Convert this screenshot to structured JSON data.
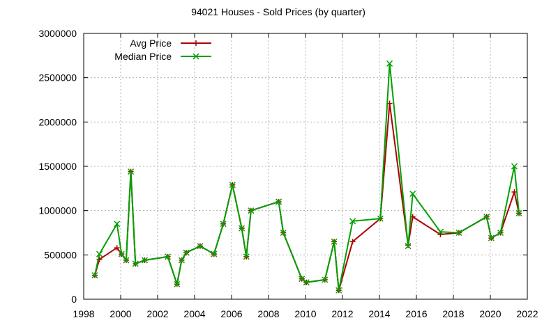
{
  "chart_data": {
    "type": "line",
    "title": "94021 Houses - Sold Prices (by quarter)",
    "xlabel": "",
    "ylabel": "",
    "xlim": [
      1998,
      2022
    ],
    "ylim": [
      0,
      3000000
    ],
    "xticks": [
      1998,
      2000,
      2002,
      2004,
      2006,
      2008,
      2010,
      2012,
      2014,
      2016,
      2018,
      2020,
      2022
    ],
    "yticks": [
      0,
      500000,
      1000000,
      1500000,
      2000000,
      2500000,
      3000000
    ],
    "grid": true,
    "legend_position": "top-left",
    "series": [
      {
        "name": "Avg Price",
        "color": "#b00000",
        "marker": "plus",
        "points": [
          [
            1998.6,
            270000
          ],
          [
            1998.85,
            450000
          ],
          [
            1999.8,
            580000
          ],
          [
            2000.05,
            510000
          ],
          [
            2000.3,
            440000
          ],
          [
            2000.55,
            1440000
          ],
          [
            2000.8,
            400000
          ],
          [
            2001.3,
            440000
          ],
          [
            2002.55,
            480000
          ],
          [
            2003.05,
            170000
          ],
          [
            2003.3,
            440000
          ],
          [
            2003.55,
            525000
          ],
          [
            2004.3,
            600000
          ],
          [
            2005.05,
            510000
          ],
          [
            2005.55,
            850000
          ],
          [
            2006.05,
            1290000
          ],
          [
            2006.55,
            800000
          ],
          [
            2006.8,
            480000
          ],
          [
            2007.05,
            1000000
          ],
          [
            2008.55,
            1100000
          ],
          [
            2008.8,
            750000
          ],
          [
            2009.8,
            230000
          ],
          [
            2010.05,
            190000
          ],
          [
            2011.05,
            220000
          ],
          [
            2011.55,
            650000
          ],
          [
            2011.8,
            100000
          ],
          [
            2012.55,
            650000
          ],
          [
            2014.05,
            910000
          ],
          [
            2014.55,
            2210000
          ],
          [
            2015.55,
            610000
          ],
          [
            2015.8,
            930000
          ],
          [
            2017.3,
            730000
          ],
          [
            2018.3,
            750000
          ],
          [
            2019.8,
            930000
          ],
          [
            2020.05,
            690000
          ],
          [
            2020.55,
            750000
          ],
          [
            2021.3,
            1210000
          ],
          [
            2021.55,
            970000
          ]
        ]
      },
      {
        "name": "Median Price",
        "color": "#00a000",
        "marker": "cross",
        "points": [
          [
            1998.6,
            270000
          ],
          [
            1998.85,
            510000
          ],
          [
            1999.8,
            850000
          ],
          [
            2000.05,
            510000
          ],
          [
            2000.3,
            440000
          ],
          [
            2000.55,
            1440000
          ],
          [
            2000.8,
            400000
          ],
          [
            2001.3,
            440000
          ],
          [
            2002.55,
            480000
          ],
          [
            2003.05,
            170000
          ],
          [
            2003.3,
            440000
          ],
          [
            2003.55,
            525000
          ],
          [
            2004.3,
            600000
          ],
          [
            2005.05,
            510000
          ],
          [
            2005.55,
            850000
          ],
          [
            2006.05,
            1290000
          ],
          [
            2006.55,
            800000
          ],
          [
            2006.8,
            480000
          ],
          [
            2007.05,
            1000000
          ],
          [
            2008.55,
            1100000
          ],
          [
            2008.8,
            750000
          ],
          [
            2009.8,
            230000
          ],
          [
            2010.05,
            190000
          ],
          [
            2011.05,
            220000
          ],
          [
            2011.55,
            650000
          ],
          [
            2011.8,
            100000
          ],
          [
            2012.55,
            880000
          ],
          [
            2014.05,
            910000
          ],
          [
            2014.55,
            2660000
          ],
          [
            2015.55,
            600000
          ],
          [
            2015.8,
            1190000
          ],
          [
            2017.3,
            760000
          ],
          [
            2018.3,
            750000
          ],
          [
            2019.8,
            930000
          ],
          [
            2020.05,
            690000
          ],
          [
            2020.55,
            750000
          ],
          [
            2021.3,
            1500000
          ],
          [
            2021.55,
            970000
          ]
        ]
      }
    ]
  }
}
